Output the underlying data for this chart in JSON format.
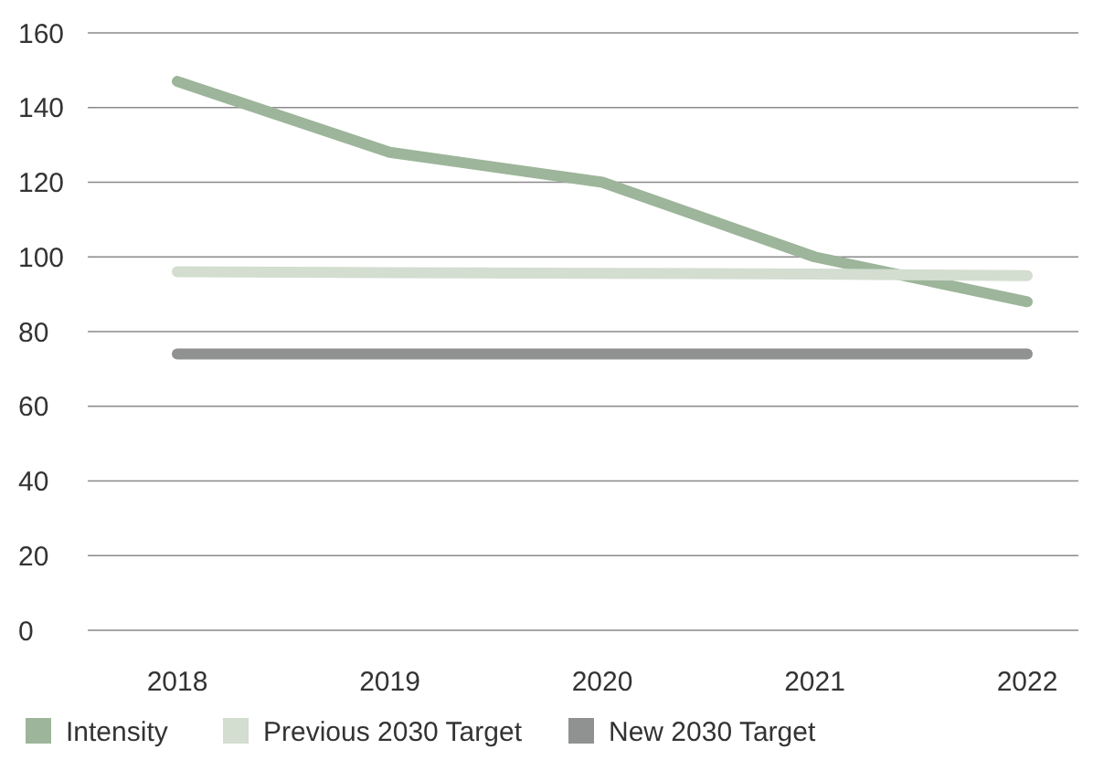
{
  "chart_data": {
    "type": "line",
    "categories": [
      "2018",
      "2019",
      "2020",
      "2021",
      "2022"
    ],
    "series": [
      {
        "name": "Intensity",
        "color": "#9db59a",
        "values": [
          147,
          128,
          120,
          100,
          88
        ]
      },
      {
        "name": "Previous 2030 Target",
        "color": "#d3ddd0",
        "values": [
          96,
          95.8,
          95.6,
          95.4,
          95
        ]
      },
      {
        "name": "New 2030 Target",
        "color": "#8f9290",
        "values": [
          74,
          74,
          74,
          74,
          74
        ]
      }
    ],
    "ylim": [
      0,
      160
    ],
    "yticks": [
      0,
      20,
      40,
      60,
      80,
      100,
      120,
      140,
      160
    ],
    "grid": "y",
    "legend": "bottom",
    "marker": "none",
    "line_style": "solid"
  }
}
